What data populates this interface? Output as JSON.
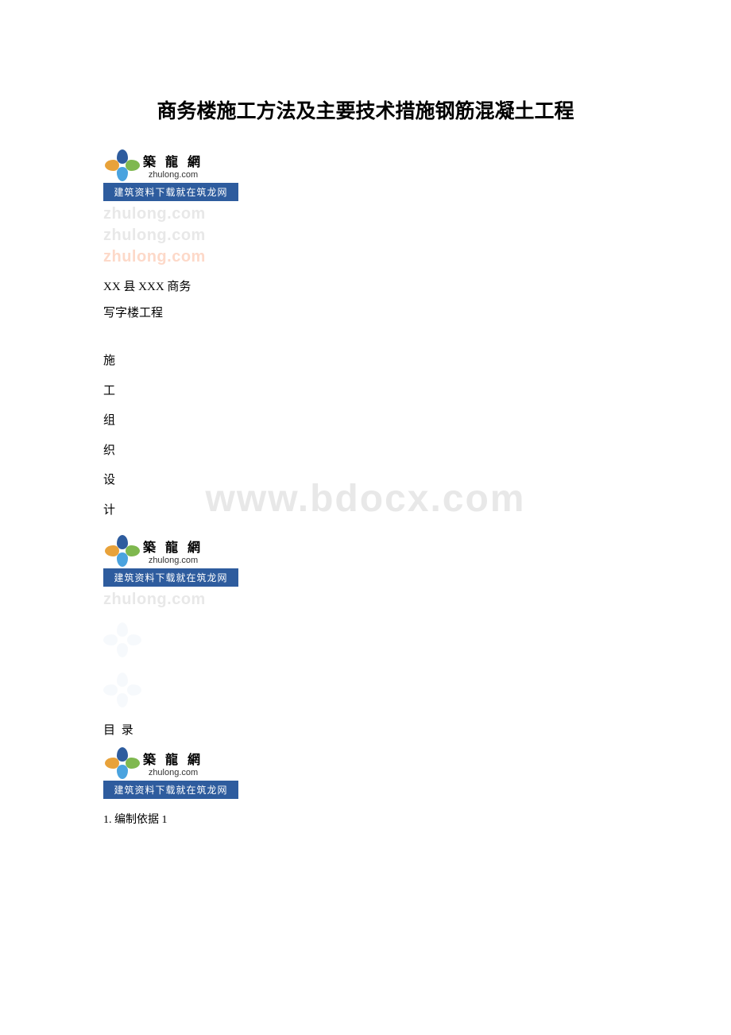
{
  "title": "商务楼施工方法及主要技术措施钢筋混凝土工程",
  "logo": {
    "cn": "築 龍 網",
    "en": "zhulong.com",
    "banner": "建筑资料下载就在筑龙网"
  },
  "watermarks": {
    "line1": "zhulong.com",
    "line2": "zhulong.com",
    "line3": "zhulong.com",
    "center": "www.bdocx.com"
  },
  "project": {
    "line1": "XX 县 XXX 商务",
    "line2": "写字楼工程"
  },
  "vertical": {
    "c1": "施",
    "c2": "工",
    "c3": "组",
    "c4": "织",
    "c5": "设",
    "c6": "计"
  },
  "toc": {
    "title": "目 录",
    "item1": "1. 编制依据 1"
  }
}
